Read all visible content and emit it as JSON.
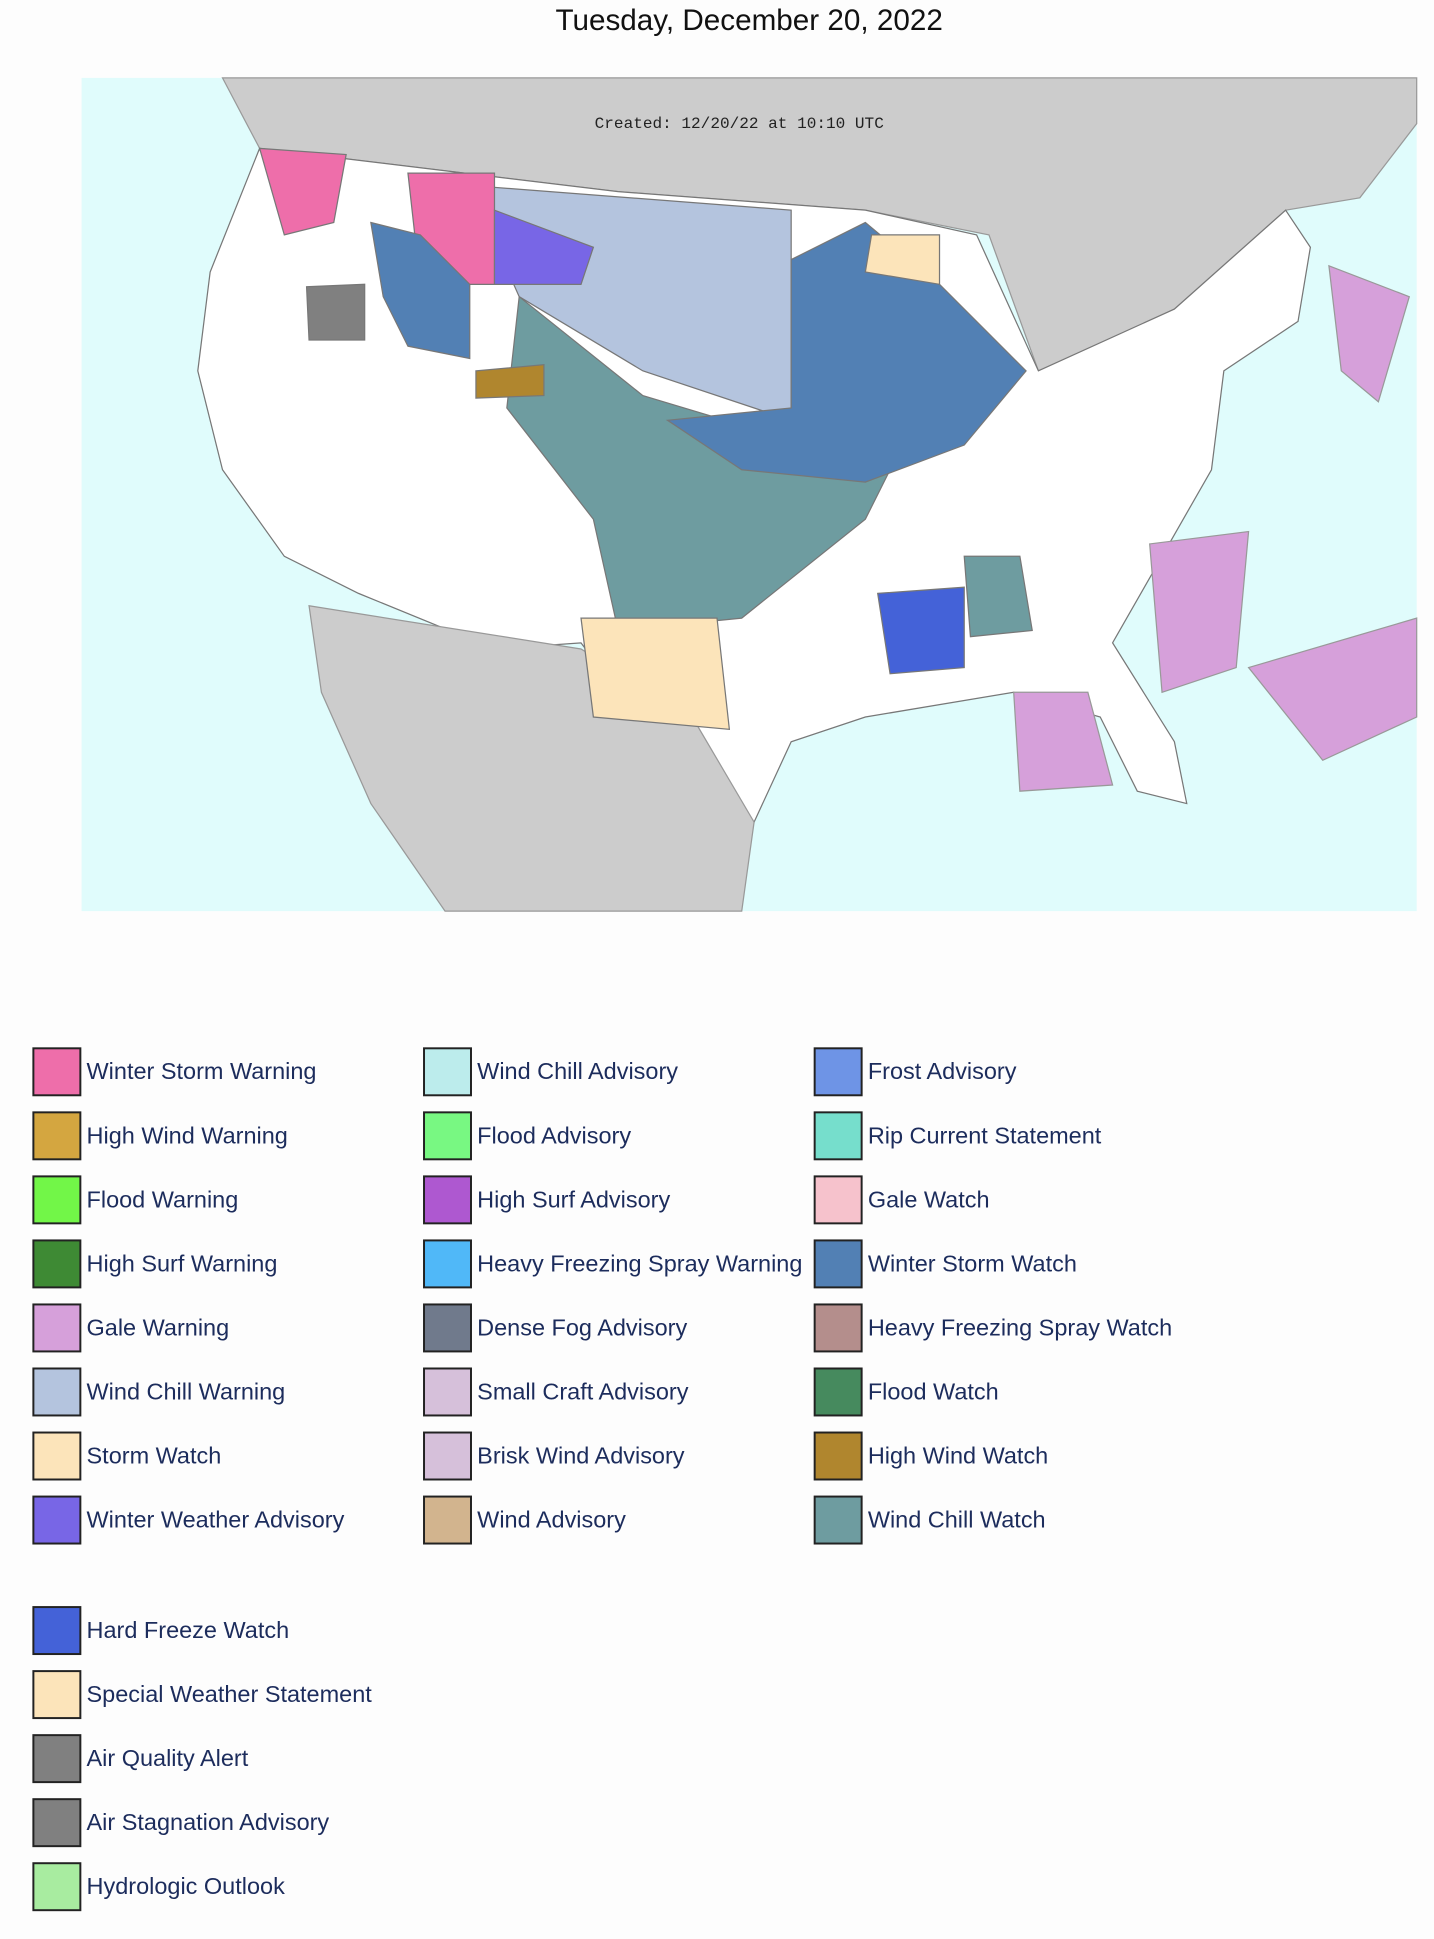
{
  "title": "Tuesday, December 20, 2022",
  "map": {
    "created_label": "Created: 12/20/22 at 10:10 UTC"
  },
  "legend": [
    {
      "label": "Winter Storm Warning",
      "color": "#ee6eaa"
    },
    {
      "label": "High Wind Warning",
      "color": "#d4a640"
    },
    {
      "label": "Flood Warning",
      "color": "#72f648"
    },
    {
      "label": "High Surf Warning",
      "color": "#3e8a34"
    },
    {
      "label": "Gale Warning",
      "color": "#d6a0da"
    },
    {
      "label": "Wind Chill Warning",
      "color": "#b4c4de"
    },
    {
      "label": "Storm Watch",
      "color": "#fce4ba"
    },
    {
      "label": "Winter Weather Advisory",
      "color": "#7866e6"
    },
    {
      "label": "Wind Chill Advisory",
      "color": "#bcecec"
    },
    {
      "label": "Flood Advisory",
      "color": "#78f882"
    },
    {
      "label": "High Surf Advisory",
      "color": "#ae58d0"
    },
    {
      "label": "Heavy Freezing Spray Warning",
      "color": "#50b8f8"
    },
    {
      "label": "Dense Fog Advisory",
      "color": "#707a8c"
    },
    {
      "label": "Small Craft Advisory",
      "color": "#d6c0da"
    },
    {
      "label": "Brisk Wind Advisory",
      "color": "#d6c0da"
    },
    {
      "label": "Wind Advisory",
      "color": "#d2b48e"
    },
    {
      "label": "Frost Advisory",
      "color": "#6e94e6"
    },
    {
      "label": "Rip Current Statement",
      "color": "#76decc"
    },
    {
      "label": "Gale Watch",
      "color": "#f6c2cc"
    },
    {
      "label": "Winter Storm Watch",
      "color": "#5280b4"
    },
    {
      "label": "Heavy Freezing Spray Watch",
      "color": "#b48e8c"
    },
    {
      "label": "Flood Watch",
      "color": "#468a5e"
    },
    {
      "label": "High Wind Watch",
      "color": "#b0862e"
    },
    {
      "label": "Wind Chill Watch",
      "color": "#6e9ca0"
    },
    {
      "label": "Hard Freeze Watch",
      "color": "#4462d8"
    },
    {
      "label": "Special Weather Statement",
      "color": "#fce4ba"
    },
    {
      "label": "Air Quality Alert",
      "color": "#808080"
    },
    {
      "label": "Air Stagnation Advisory",
      "color": "#808080"
    },
    {
      "label": "Hydrologic Outlook",
      "color": "#a8eca0"
    }
  ]
}
